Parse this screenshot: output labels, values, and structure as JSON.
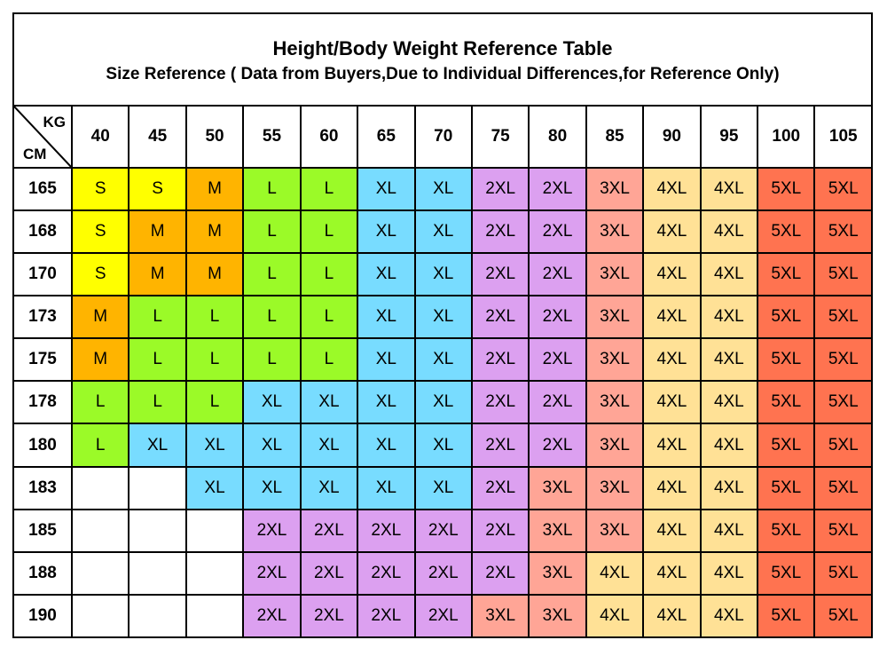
{
  "title": "Height/Body Weight Reference Table",
  "subtitle": "Size Reference ( Data from Buyers,Due to Individual Differences,for Reference Only)",
  "corner": {
    "weight_unit": "KG",
    "height_unit": "CM"
  },
  "weights": [
    "40",
    "45",
    "50",
    "55",
    "60",
    "65",
    "70",
    "75",
    "80",
    "85",
    "90",
    "95",
    "100",
    "105"
  ],
  "heights": [
    "165",
    "168",
    "170",
    "173",
    "175",
    "178",
    "180",
    "183",
    "185",
    "188",
    "190"
  ],
  "size_colors": {
    "S": "#ffff00",
    "M": "#ffb400",
    "L": "#9bfa28",
    "XL": "#78dcff",
    "2XL": "#dca0f0",
    "3XL": "#ffa596",
    "4XL": "#ffe196",
    "5XL": "#ff7350",
    "": "#ffffff"
  },
  "sizes": [
    [
      "S",
      "S",
      "M",
      "L",
      "L",
      "XL",
      "XL",
      "2XL",
      "2XL",
      "3XL",
      "4XL",
      "4XL",
      "5XL",
      "5XL"
    ],
    [
      "S",
      "M",
      "M",
      "L",
      "L",
      "XL",
      "XL",
      "2XL",
      "2XL",
      "3XL",
      "4XL",
      "4XL",
      "5XL",
      "5XL"
    ],
    [
      "S",
      "M",
      "M",
      "L",
      "L",
      "XL",
      "XL",
      "2XL",
      "2XL",
      "3XL",
      "4XL",
      "4XL",
      "5XL",
      "5XL"
    ],
    [
      "M",
      "L",
      "L",
      "L",
      "L",
      "XL",
      "XL",
      "2XL",
      "2XL",
      "3XL",
      "4XL",
      "4XL",
      "5XL",
      "5XL"
    ],
    [
      "M",
      "L",
      "L",
      "L",
      "L",
      "XL",
      "XL",
      "2XL",
      "2XL",
      "3XL",
      "4XL",
      "4XL",
      "5XL",
      "5XL"
    ],
    [
      "L",
      "L",
      "L",
      "XL",
      "XL",
      "XL",
      "XL",
      "2XL",
      "2XL",
      "3XL",
      "4XL",
      "4XL",
      "5XL",
      "5XL"
    ],
    [
      "L",
      "XL",
      "XL",
      "XL",
      "XL",
      "XL",
      "XL",
      "2XL",
      "2XL",
      "3XL",
      "4XL",
      "4XL",
      "5XL",
      "5XL"
    ],
    [
      "",
      "",
      "XL",
      "XL",
      "XL",
      "XL",
      "XL",
      "2XL",
      "3XL",
      "3XL",
      "4XL",
      "4XL",
      "5XL",
      "5XL"
    ],
    [
      "",
      "",
      "",
      "2XL",
      "2XL",
      "2XL",
      "2XL",
      "2XL",
      "3XL",
      "3XL",
      "4XL",
      "4XL",
      "5XL",
      "5XL"
    ],
    [
      "",
      "",
      "",
      "2XL",
      "2XL",
      "2XL",
      "2XL",
      "2XL",
      "3XL",
      "4XL",
      "4XL",
      "4XL",
      "5XL",
      "5XL"
    ],
    [
      "",
      "",
      "",
      "2XL",
      "2XL",
      "2XL",
      "2XL",
      "3XL",
      "3XL",
      "4XL",
      "4XL",
      "4XL",
      "5XL",
      "5XL"
    ]
  ]
}
